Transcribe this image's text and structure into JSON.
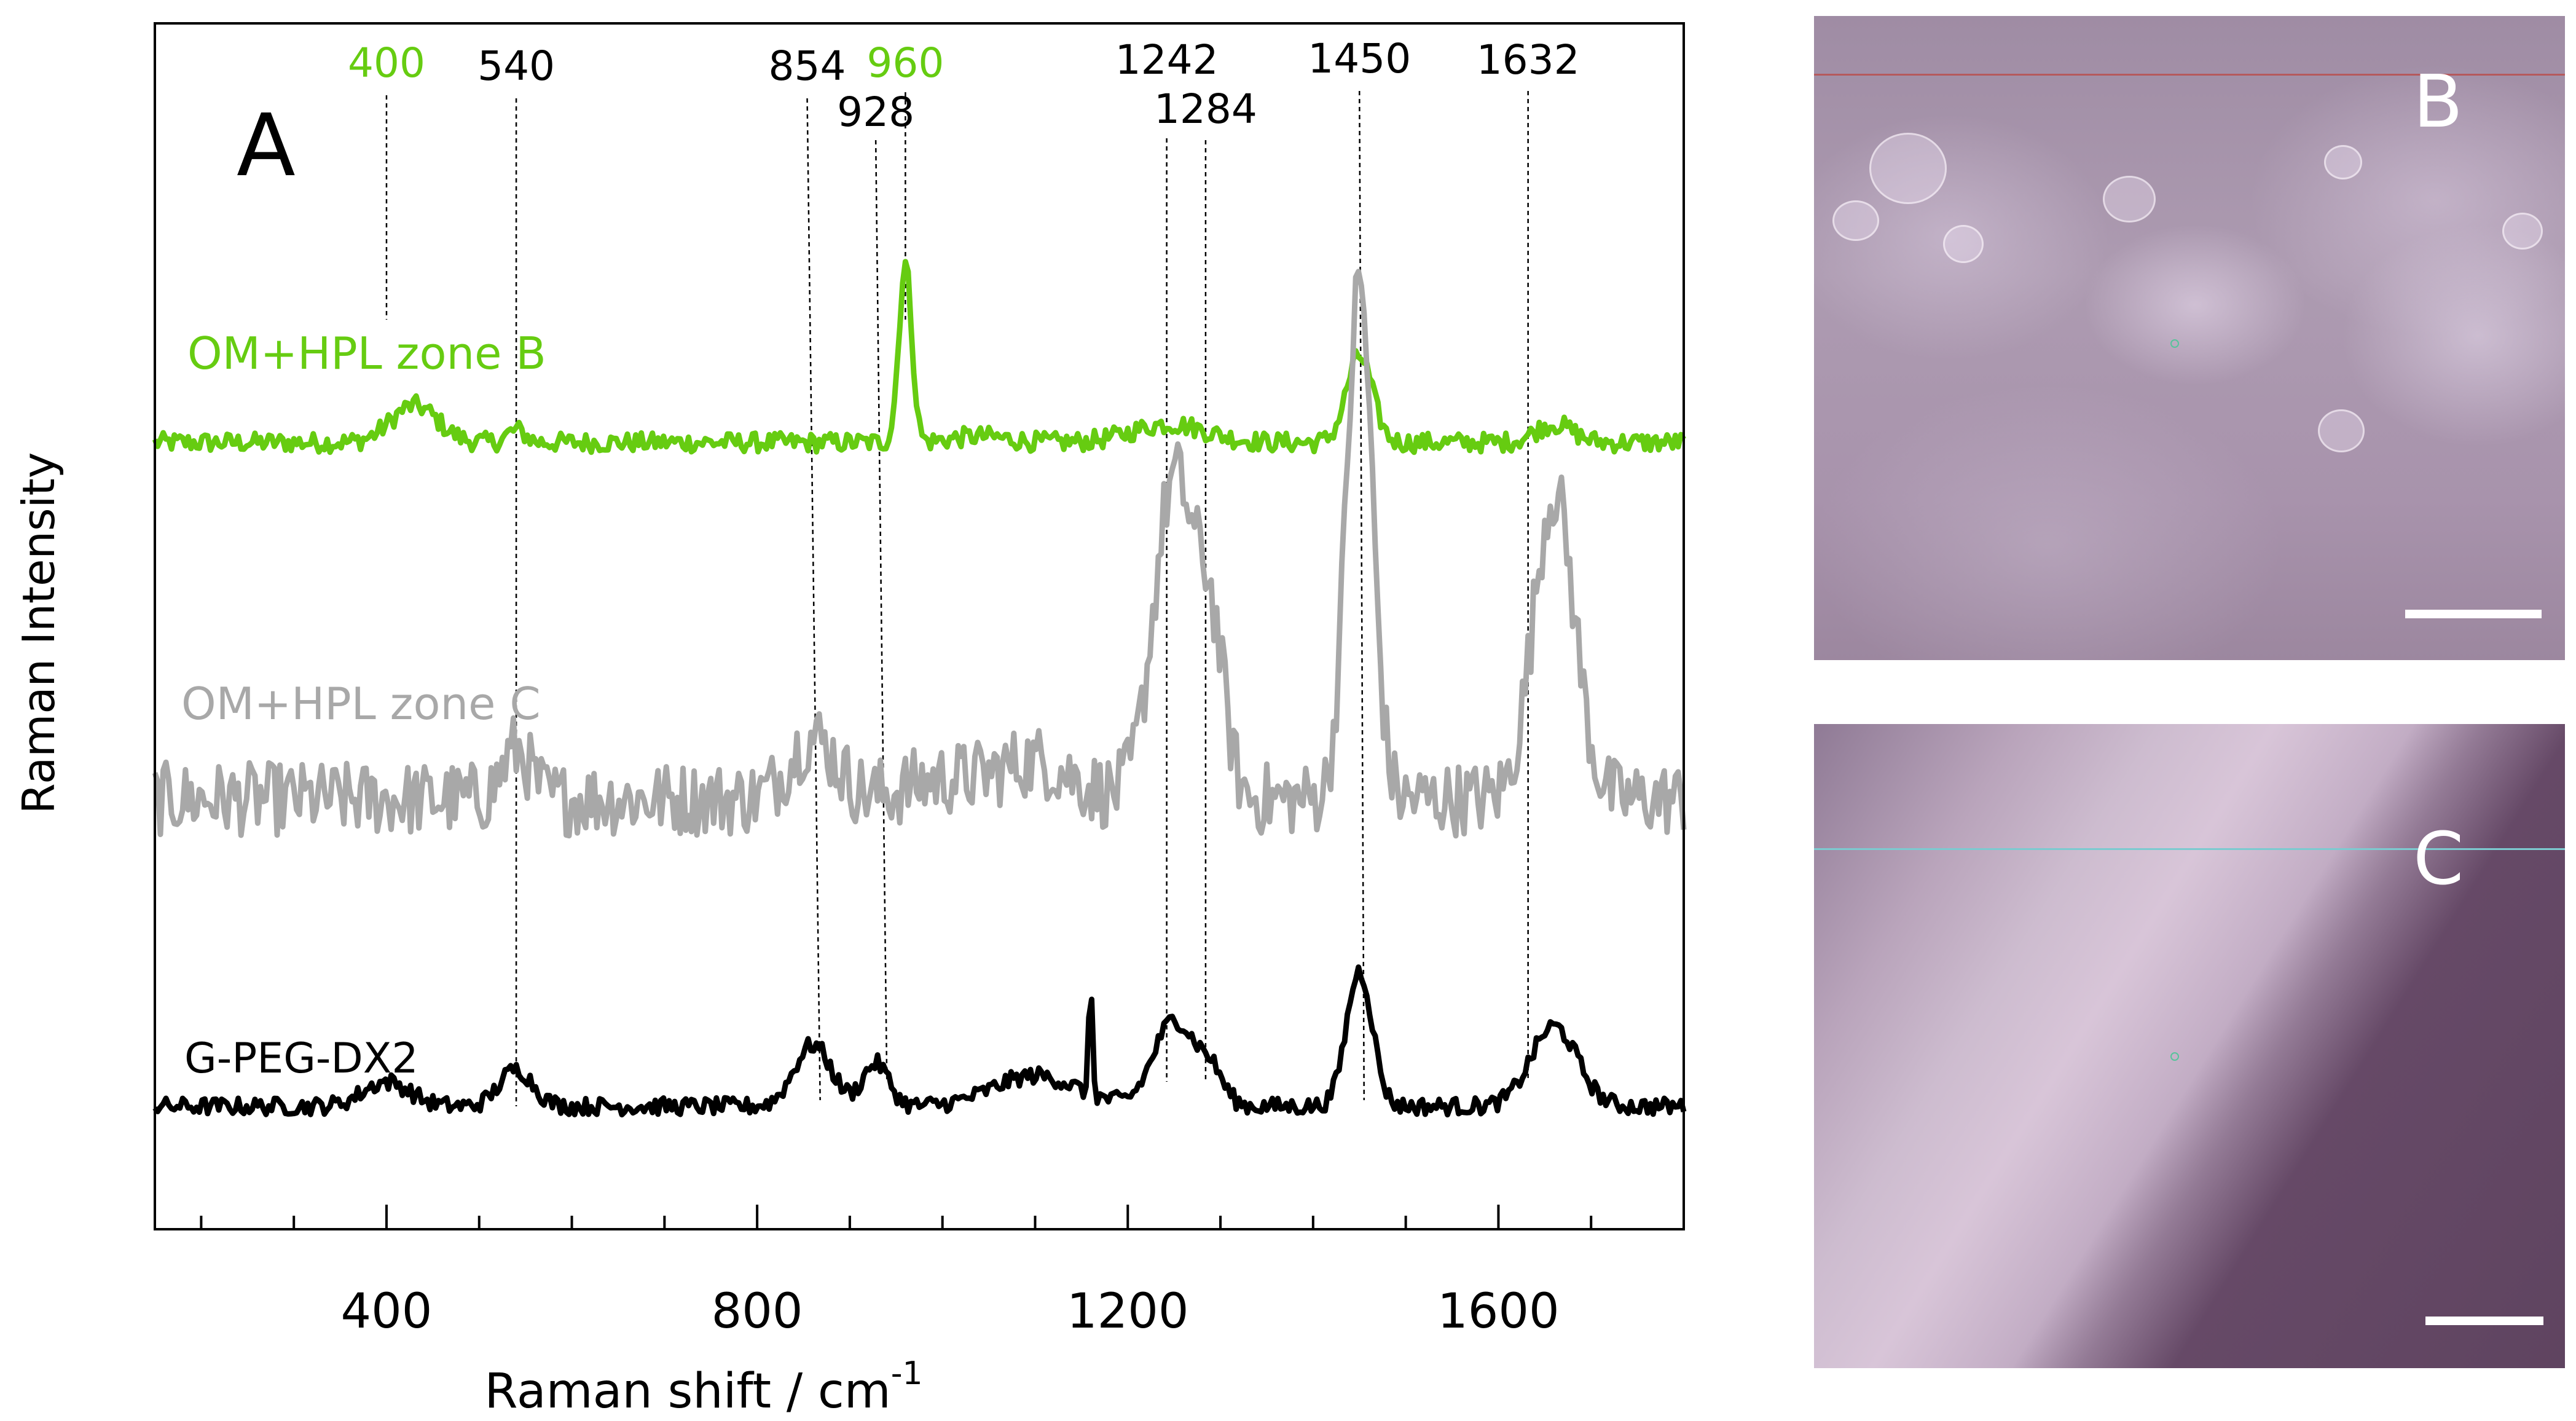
{
  "chart_data": {
    "type": "line",
    "panel_label": "A",
    "xlabel": "Raman shift / cm",
    "xlabel_superscript": "-1",
    "ylabel": "Raman Intensity",
    "xlim": [
      150,
      1800
    ],
    "xticks": [
      400,
      800,
      1200,
      1600
    ],
    "grid": false,
    "series": [
      {
        "name": "OM+HPL zone B",
        "color": "#66cc11",
        "baseline": 5.9,
        "noise": 0.08,
        "peaks": [
          [
            960,
            1.45,
            7
          ],
          [
            1450,
            0.7,
            14
          ],
          [
            430,
            0.3,
            25
          ],
          [
            1245,
            0.15,
            40
          ],
          [
            1660,
            0.15,
            20
          ],
          [
            540,
            0.1,
            10
          ],
          [
            1040,
            0.05,
            30
          ]
        ]
      },
      {
        "name": "OM+HPL zone C",
        "color": "#a8a8a8",
        "baseline": 3.0,
        "noise": 0.3,
        "peaks": [
          [
            1450,
            4.2,
            14
          ],
          [
            1250,
            2.6,
            22
          ],
          [
            1290,
            1.2,
            15
          ],
          [
            1660,
            2.5,
            22
          ],
          [
            860,
            0.5,
            25
          ],
          [
            540,
            0.4,
            15
          ],
          [
            1100,
            0.3,
            40
          ],
          [
            1000,
            0.15,
            40
          ]
        ]
      },
      {
        "name": "G-PEG-DX2",
        "color": "#000000",
        "baseline": 0.5,
        "noise": 0.07,
        "peaks": [
          [
            1450,
            1.1,
            14
          ],
          [
            1250,
            0.7,
            22
          ],
          [
            1290,
            0.25,
            14
          ],
          [
            1660,
            0.65,
            25
          ],
          [
            860,
            0.5,
            20
          ],
          [
            928,
            0.35,
            14
          ],
          [
            540,
            0.3,
            18
          ],
          [
            400,
            0.2,
            25
          ],
          [
            1100,
            0.25,
            45
          ],
          [
            1160,
            0.9,
            2
          ]
        ]
      }
    ],
    "annotations": [
      {
        "label": "400",
        "x": 400,
        "color": "#66cc11"
      },
      {
        "label": "540",
        "x": 540,
        "color": "#000000"
      },
      {
        "label": "854",
        "x": 854,
        "color": "#000000"
      },
      {
        "label": "928",
        "x": 928,
        "color": "#000000"
      },
      {
        "label": "960",
        "x": 960,
        "color": "#66cc11"
      },
      {
        "label": "1242",
        "x": 1242,
        "color": "#000000"
      },
      {
        "label": "1284",
        "x": 1284,
        "color": "#000000"
      },
      {
        "label": "1450",
        "x": 1450,
        "color": "#000000"
      },
      {
        "label": "1632",
        "x": 1632,
        "color": "#000000"
      }
    ]
  },
  "micrographs": [
    {
      "label": "B"
    },
    {
      "label": "C"
    }
  ]
}
